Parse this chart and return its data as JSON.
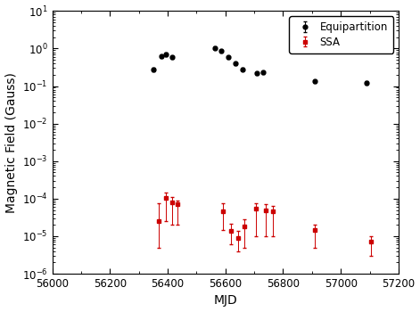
{
  "title": "",
  "xlabel": "MJD",
  "ylabel": "Magnetic Field (Gauss)",
  "xlim": [
    56000,
    57200
  ],
  "ylim": [
    1e-06,
    10
  ],
  "background_color": "#ffffff",
  "axes_color": "#ffffff",
  "equipartition_x": [
    56350,
    56378,
    56395,
    56415,
    56565,
    56585,
    56610,
    56635,
    56660,
    56710,
    56730,
    56910,
    57090
  ],
  "equipartition_y": [
    0.28,
    0.62,
    0.7,
    0.58,
    1.05,
    0.85,
    0.58,
    0.4,
    0.28,
    0.22,
    0.23,
    0.135,
    0.12
  ],
  "equipartition_yerr_lo": [
    0.03,
    0.05,
    0.06,
    0.05,
    0.07,
    0.06,
    0.04,
    0.035,
    0.025,
    0.018,
    0.02,
    0.012,
    0.012
  ],
  "equipartition_yerr_hi": [
    0.03,
    0.05,
    0.06,
    0.05,
    0.07,
    0.06,
    0.04,
    0.035,
    0.025,
    0.018,
    0.02,
    0.012,
    0.012
  ],
  "ssa_x": [
    56370,
    56393,
    56415,
    56435,
    56590,
    56620,
    56645,
    56665,
    56705,
    56740,
    56765,
    56910,
    57105
  ],
  "ssa_y": [
    2.5e-05,
    0.000105,
    8e-05,
    7e-05,
    4.5e-05,
    1.4e-05,
    9e-06,
    1.8e-05,
    5.5e-05,
    5e-05,
    4.5e-05,
    1.5e-05,
    7e-06
  ],
  "ssa_yerr_lo": [
    2e-05,
    8e-05,
    6e-05,
    5e-05,
    3e-05,
    8e-06,
    5e-06,
    1.3e-05,
    4.5e-05,
    4e-05,
    3.5e-05,
    1e-05,
    4e-06
  ],
  "ssa_yerr_hi": [
    5e-05,
    4e-05,
    3e-05,
    2e-05,
    3e-05,
    8e-06,
    5e-06,
    1e-05,
    2e-05,
    2e-05,
    2e-05,
    5e-06,
    3e-06
  ],
  "equip_color": "#000000",
  "ssa_color": "#cc0000",
  "legend_loc": "upper right",
  "tick_labelsize": 8.5,
  "label_fontsize": 10
}
